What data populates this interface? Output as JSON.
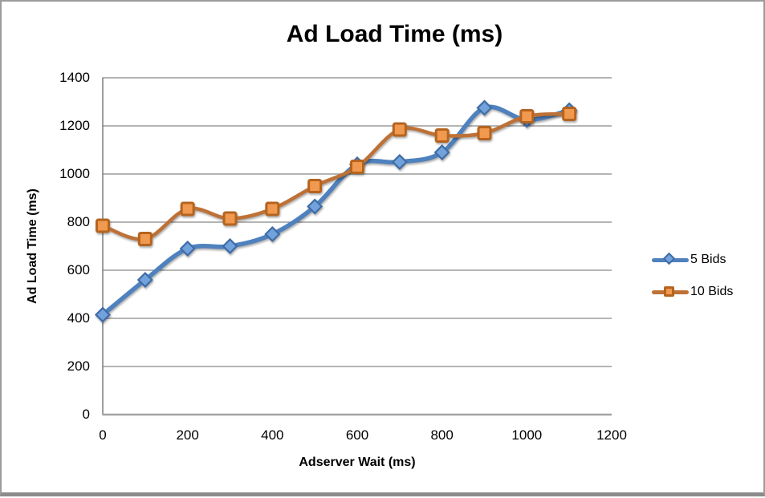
{
  "window": {
    "background": "#ffffff",
    "border_color": "#9c9c9c",
    "bottom_border_color": "#8c8c8c"
  },
  "chart_data": {
    "type": "line",
    "title": "Ad Load Time (ms)",
    "xlabel": "Adserver Wait (ms)",
    "ylabel": "Ad Load Time (ms)",
    "x": [
      0,
      100,
      200,
      300,
      400,
      500,
      600,
      700,
      800,
      900,
      1000,
      1100
    ],
    "series": [
      {
        "name": "5 Bids",
        "marker": "diamond",
        "line_color": "#4E81BD",
        "marker_fill": "#72A2DC",
        "marker_stroke": "#3E6CA6",
        "values": [
          415,
          560,
          690,
          700,
          750,
          865,
          1040,
          1050,
          1090,
          1275,
          1225,
          1265
        ]
      },
      {
        "name": "10 Bids",
        "marker": "square",
        "line_color": "#BE7136",
        "marker_fill": "#F0994F",
        "marker_stroke": "#B5641F",
        "values": [
          785,
          730,
          855,
          815,
          855,
          950,
          1030,
          1185,
          1160,
          1170,
          1240,
          1250
        ]
      }
    ],
    "xlim": [
      0,
      1200
    ],
    "ylim": [
      0,
      1400
    ],
    "x_ticks": [
      0,
      200,
      400,
      600,
      800,
      1000,
      1200
    ],
    "y_ticks": [
      0,
      200,
      400,
      600,
      800,
      1000,
      1200,
      1400
    ],
    "grid": true,
    "legend_position": "right",
    "grid_color": "#878787",
    "axis_color": "#7d7d7d",
    "x_axis_color": "#a3a3a3",
    "text_color": "#000000"
  }
}
